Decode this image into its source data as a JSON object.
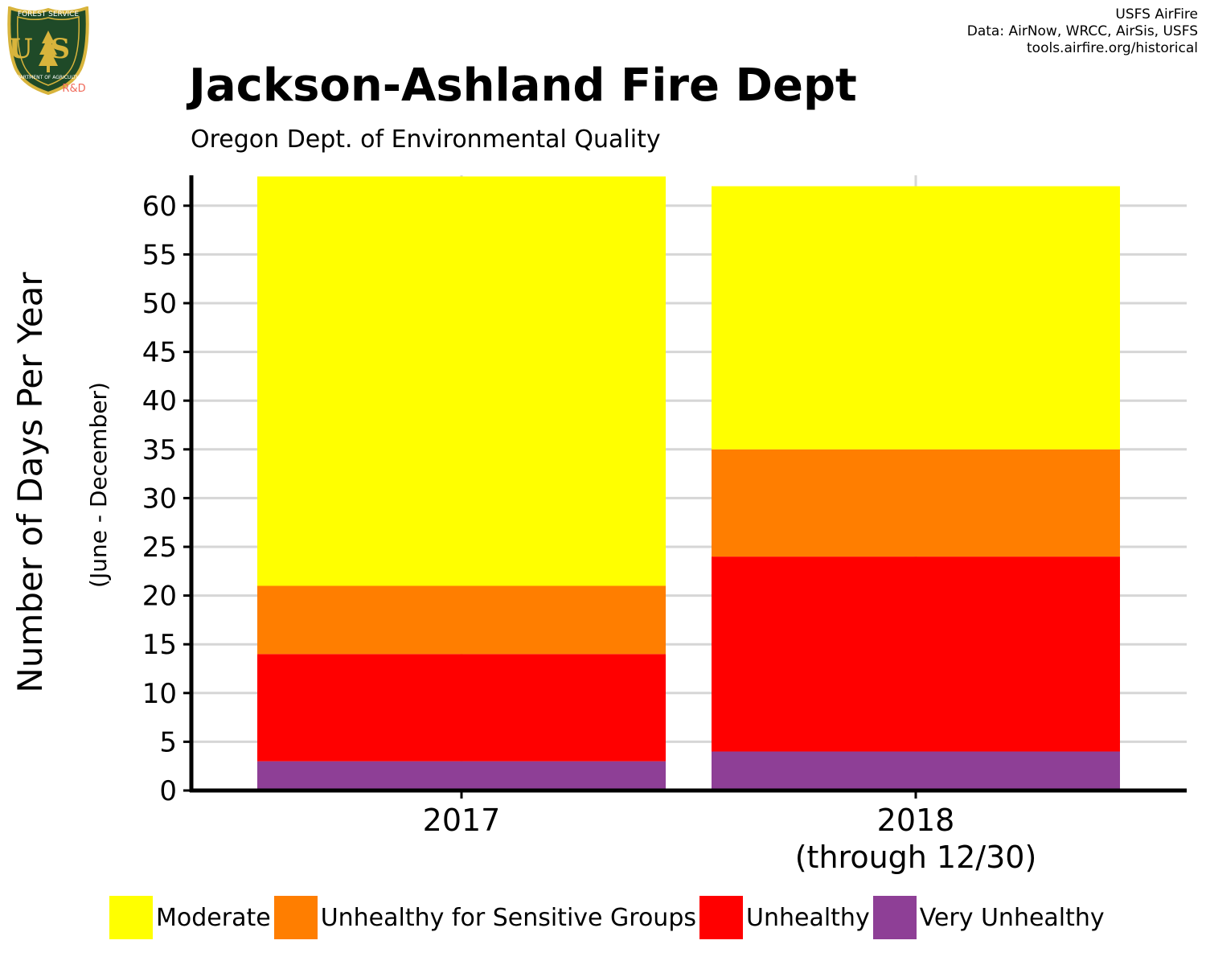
{
  "logo": {
    "top_text": "FOREST SERVICE",
    "main_text": "US",
    "bottom_text": "DEPARTMENT OF AGRICULTURE",
    "badge_text": "R&D"
  },
  "credits": [
    "USFS AirFire",
    "Data: AirNow, WRCC, AirSis, USFS",
    "tools.airfire.org/historical"
  ],
  "title": "Jackson-Ashland Fire Dept",
  "subtitle": "Oregon Dept. of Environmental Quality",
  "colors": {
    "Very Unhealthy": "#8e3f96",
    "Unhealthy": "#ff0000",
    "Unhealthy for Sensitive Groups": "#ff7e00",
    "Moderate": "#ffff00",
    "grid": "#d6d6d6",
    "axis": "#000000"
  },
  "chart_data": {
    "type": "bar",
    "stacked": true,
    "categories": [
      "2017",
      "2018\n(through 12/30)"
    ],
    "series": [
      {
        "name": "Very Unhealthy",
        "values": [
          3,
          4
        ]
      },
      {
        "name": "Unhealthy",
        "values": [
          11,
          20
        ]
      },
      {
        "name": "Unhealthy for Sensitive Groups",
        "values": [
          7,
          11
        ]
      },
      {
        "name": "Moderate",
        "values": [
          42,
          27
        ]
      }
    ],
    "ylabel": "Number of Days Per Year",
    "ylabel_sub": "(June - December)",
    "yticks": [
      0,
      5,
      10,
      15,
      20,
      25,
      30,
      35,
      40,
      45,
      50,
      55,
      60
    ],
    "ylim": [
      0,
      63
    ],
    "grid": "horizontal",
    "legend_position": "bottom"
  },
  "legend": [
    {
      "label": "Moderate",
      "color": "#ffff00"
    },
    {
      "label": "Unhealthy for Sensitive Groups",
      "color": "#ff7e00"
    },
    {
      "label": "Unhealthy",
      "color": "#ff0000"
    },
    {
      "label": "Very Unhealthy",
      "color": "#8e3f96"
    }
  ]
}
